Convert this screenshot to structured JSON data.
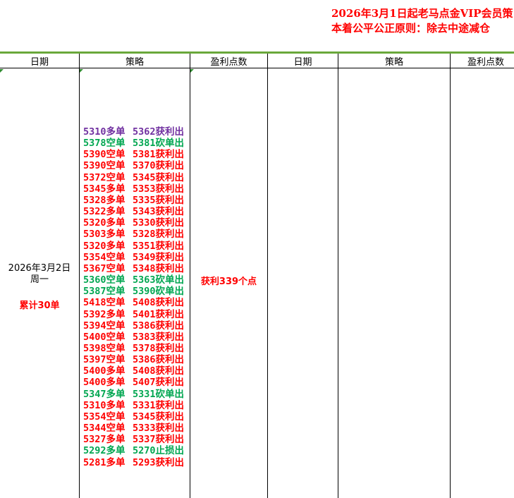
{
  "header": {
    "title_line1": "2026年3月1日起老马点金VIP会员策",
    "title_line2": "本着公平公正原则：除去中途减仓"
  },
  "columns": [
    "日期",
    "策略",
    "盈利点数",
    "日期",
    "策略",
    "盈利点数"
  ],
  "colors": {
    "red": "#ff0000",
    "green": "#00a650",
    "purple": "#7030a0",
    "header_line": "#6aa83a"
  },
  "day": {
    "date": "2026年3月2日",
    "weekday": "周一",
    "total": "累计30单",
    "profit": "获利339个点",
    "trades": [
      {
        "entry": "5310多单",
        "exit": "5362获利出",
        "color": "purple"
      },
      {
        "entry": "5378空单",
        "exit": "5381砍单出",
        "color": "green"
      },
      {
        "entry": "5390空单",
        "exit": "5381获利出",
        "color": "red"
      },
      {
        "entry": "5390空单",
        "exit": "5370获利出",
        "color": "red"
      },
      {
        "entry": "5372空单",
        "exit": "5345获利出",
        "color": "red"
      },
      {
        "entry": "5345多单",
        "exit": "5353获利出",
        "color": "red"
      },
      {
        "entry": "5328多单",
        "exit": "5335获利出",
        "color": "red"
      },
      {
        "entry": "5322多单",
        "exit": "5343获利出",
        "color": "red"
      },
      {
        "entry": "5320多单",
        "exit": "5330获利出",
        "color": "red"
      },
      {
        "entry": "5303多单",
        "exit": "5328获利出",
        "color": "red"
      },
      {
        "entry": "5320多单",
        "exit": "5351获利出",
        "color": "red"
      },
      {
        "entry": "5354空单",
        "exit": "5349获利出",
        "color": "red"
      },
      {
        "entry": "5367空单",
        "exit": "5348获利出",
        "color": "red"
      },
      {
        "entry": "5360空单",
        "exit": "5363砍单出",
        "color": "green"
      },
      {
        "entry": "5387空单",
        "exit": "5390砍单出",
        "color": "green"
      },
      {
        "entry": "5418空单",
        "exit": "5408获利出",
        "color": "red"
      },
      {
        "entry": "5392多单",
        "exit": "5401获利出",
        "color": "red"
      },
      {
        "entry": "5394空单",
        "exit": "5386获利出",
        "color": "red"
      },
      {
        "entry": "5400空单",
        "exit": "5383获利出",
        "color": "red"
      },
      {
        "entry": "5398空单",
        "exit": "5378获利出",
        "color": "red"
      },
      {
        "entry": "5397空单",
        "exit": "5386获利出",
        "color": "red"
      },
      {
        "entry": "5400多单",
        "exit": "5408获利出",
        "color": "red"
      },
      {
        "entry": "5400多单",
        "exit": "5407获利出",
        "color": "red"
      },
      {
        "entry": "5347多单",
        "exit": "5331砍单出",
        "color": "green"
      },
      {
        "entry": "5310多单",
        "exit": "5331获利出",
        "color": "red"
      },
      {
        "entry": "5354空单",
        "exit": "5345获利出",
        "color": "red"
      },
      {
        "entry": "5344空单",
        "exit": "5333获利出",
        "color": "red"
      },
      {
        "entry": "5327多单",
        "exit": "5337获利出",
        "color": "red"
      },
      {
        "entry": "5292多单",
        "exit": "5270止损出",
        "color": "green"
      },
      {
        "entry": "5281多单",
        "exit": "5293获利出",
        "color": "red"
      }
    ]
  }
}
